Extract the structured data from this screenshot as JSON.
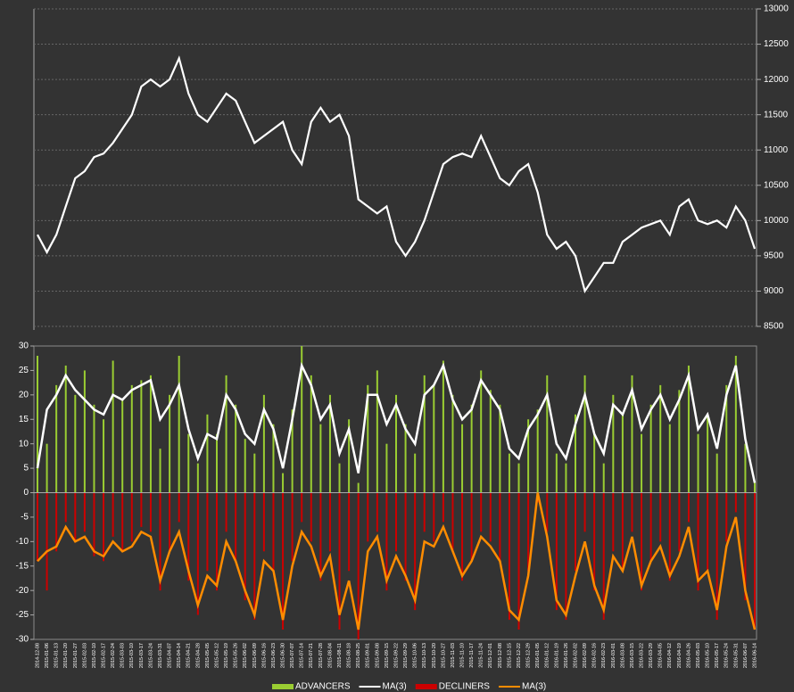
{
  "chart_data": [
    {
      "type": "line",
      "color": "#ffffff",
      "values": [
        9800,
        9550,
        9800,
        10200,
        10600,
        10700,
        10900,
        10950,
        11100,
        11300,
        11500,
        11900,
        12000,
        11900,
        12000,
        12300,
        11800,
        11500,
        11400,
        11600,
        11800,
        11700,
        11400,
        11100,
        11200,
        11300,
        11400,
        11000,
        10800,
        11400,
        11600,
        11400,
        11500,
        11200,
        10300,
        10200,
        10100,
        10200,
        9700,
        9500,
        9700,
        10000,
        10400,
        10800,
        10900,
        10950,
        10900,
        11200,
        10900,
        10600,
        10500,
        10700,
        10800,
        10400,
        9800,
        9600,
        9700,
        9500,
        9000,
        9200,
        9400,
        9400,
        9700,
        9800,
        9900,
        9950,
        10000,
        9800,
        10200,
        10300,
        10000,
        9950,
        10000,
        9900,
        10200,
        10000,
        9600
      ],
      "ylim": [
        8500,
        13000
      ],
      "yticks": [
        8500,
        9000,
        9500,
        10000,
        10500,
        11000,
        11500,
        12000,
        12500,
        13000
      ],
      "grid": true
    },
    {
      "type": "bar",
      "categories": [
        "2014-12-08",
        "2015-01-06",
        "2015-01-13",
        "2015-01-20",
        "2015-01-27",
        "2015-02-03",
        "2015-02-10",
        "2015-02-17",
        "2015-02-24",
        "2015-03-03",
        "2015-03-10",
        "2015-03-17",
        "2015-03-24",
        "2015-03-31",
        "2015-04-07",
        "2015-04-14",
        "2015-04-21",
        "2015-04-28",
        "2015-05-05",
        "2015-05-12",
        "2015-05-19",
        "2015-05-26",
        "2015-06-02",
        "2015-06-09",
        "2015-06-16",
        "2015-06-23",
        "2015-06-30",
        "2015-07-07",
        "2015-07-14",
        "2015-07-21",
        "2015-07-28",
        "2015-08-04",
        "2015-08-11",
        "2015-08-18",
        "2015-08-25",
        "2015-09-01",
        "2015-09-08",
        "2015-09-15",
        "2015-09-22",
        "2015-09-29",
        "2015-10-06",
        "2015-10-13",
        "2015-10-20",
        "2015-10-27",
        "2015-11-03",
        "2015-11-10",
        "2015-11-17",
        "2015-11-24",
        "2015-12-01",
        "2015-12-08",
        "2015-12-15",
        "2015-12-22",
        "2015-12-29",
        "2016-01-05",
        "2016-01-12",
        "2016-01-19",
        "2016-01-26",
        "2016-02-02",
        "2016-02-09",
        "2016-02-16",
        "2016-02-23",
        "2016-03-01",
        "2016-03-08",
        "2016-03-15",
        "2016-03-22",
        "2016-03-29",
        "2016-04-05",
        "2016-04-12",
        "2016-04-19",
        "2016-04-26",
        "2016-05-03",
        "2016-05-10",
        "2016-05-17",
        "2016-05-24",
        "2016-05-31",
        "2016-06-07",
        "2016-06-14"
      ],
      "series": [
        {
          "name": "ADVANCERS",
          "type": "bar",
          "color": "#9acd32",
          "values": [
            28,
            10,
            22,
            26,
            20,
            25,
            18,
            15,
            27,
            19,
            22,
            23,
            24,
            9,
            20,
            28,
            12,
            6,
            16,
            12,
            24,
            18,
            11,
            8,
            20,
            14,
            4,
            17,
            30,
            24,
            14,
            20,
            6,
            15,
            2,
            22,
            25,
            10,
            20,
            14,
            8,
            24,
            22,
            27,
            20,
            14,
            18,
            25,
            21,
            18,
            8,
            6,
            15,
            17,
            24,
            8,
            6,
            16,
            24,
            12,
            6,
            20,
            16,
            24,
            12,
            18,
            22,
            14,
            21,
            26,
            12,
            16,
            8,
            22,
            28,
            10,
            2
          ]
        },
        {
          "name": "MA(3)",
          "type": "line",
          "color": "#ffffff",
          "values": [
            5,
            17,
            20,
            24,
            21,
            19,
            17,
            16,
            20,
            19,
            21,
            22,
            23,
            15,
            18,
            22,
            13,
            7,
            12,
            11,
            20,
            17,
            12,
            10,
            17,
            13,
            5,
            15,
            26,
            22,
            15,
            18,
            8,
            13,
            4,
            20,
            20,
            14,
            18,
            13,
            10,
            20,
            22,
            26,
            19,
            15,
            17,
            23,
            20,
            17,
            9,
            7,
            13,
            16,
            20,
            10,
            7,
            14,
            20,
            12,
            8,
            18,
            16,
            21,
            13,
            17,
            20,
            15,
            19,
            24,
            13,
            16,
            9,
            20,
            26,
            11,
            2
          ]
        },
        {
          "name": "DECLINERS",
          "type": "bar",
          "color": "#cc0000",
          "values": [
            -14,
            -20,
            -12,
            -6,
            -10,
            -8,
            -13,
            -14,
            -9,
            -12,
            -10,
            -7,
            -8,
            -20,
            -12,
            -6,
            -18,
            -25,
            -16,
            -20,
            -8,
            -14,
            -22,
            -26,
            -12,
            -16,
            -28,
            -14,
            -6,
            -10,
            -18,
            -12,
            -28,
            -16,
            -30,
            -10,
            -8,
            -20,
            -12,
            -18,
            -24,
            -8,
            -10,
            -6,
            -12,
            -18,
            -14,
            -8,
            -10,
            -14,
            -26,
            -28,
            -16,
            -2,
            -8,
            -24,
            -26,
            -16,
            -8,
            -20,
            -26,
            -12,
            -16,
            -8,
            -20,
            -14,
            -10,
            -18,
            -12,
            -6,
            -20,
            -16,
            -26,
            -10,
            -4,
            -22,
            -28
          ]
        },
        {
          "name": "MA(3)",
          "type": "line",
          "color": "#ff8c00",
          "values": [
            -14,
            -12,
            -11,
            -7,
            -10,
            -9,
            -12,
            -13,
            -10,
            -12,
            -11,
            -8,
            -9,
            -18,
            -12,
            -8,
            -16,
            -23,
            -17,
            -19,
            -10,
            -14,
            -20,
            -25,
            -14,
            -16,
            -26,
            -15,
            -8,
            -11,
            -17,
            -13,
            -25,
            -18,
            -28,
            -12,
            -9,
            -18,
            -13,
            -17,
            -22,
            -10,
            -11,
            -7,
            -12,
            -17,
            -14,
            -9,
            -11,
            -14,
            -24,
            -26,
            -17,
            0,
            -9,
            -22,
            -25,
            -17,
            -10,
            -19,
            -24,
            -13,
            -16,
            -9,
            -19,
            -14,
            -11,
            -17,
            -13,
            -7,
            -18,
            -16,
            -24,
            -11,
            -5,
            -20,
            -28
          ]
        }
      ],
      "ylim": [
        -30,
        30
      ],
      "yticks": [
        -30,
        -25,
        -20,
        -15,
        -10,
        -5,
        0,
        5,
        10,
        15,
        20,
        25,
        30
      ],
      "legend": "bottom"
    }
  ]
}
